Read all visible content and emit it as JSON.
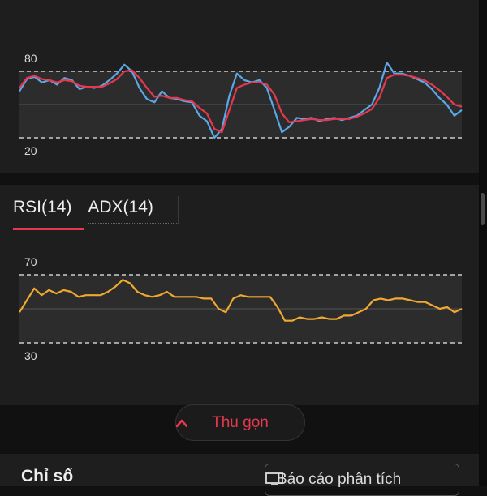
{
  "stochastic": {
    "upper_label": "80",
    "lower_label": "20",
    "k_color": "#5aa8e8",
    "d_color": "#e8384f",
    "k_values": [
      62,
      73,
      75,
      70,
      72,
      68,
      74,
      72,
      64,
      66,
      65,
      67,
      72,
      78,
      86,
      80,
      65,
      55,
      52,
      62,
      56,
      55,
      53,
      52,
      40,
      35,
      20,
      28,
      58,
      78,
      72,
      70,
      72,
      65,
      45,
      25,
      30,
      38,
      37,
      38,
      35,
      37,
      38,
      36,
      38,
      40,
      45,
      50,
      65,
      88,
      78,
      78,
      76,
      73,
      70,
      64,
      56,
      50,
      40,
      45
    ],
    "d_values": [
      65,
      74,
      76,
      73,
      72,
      70,
      72,
      71,
      67,
      66,
      66,
      66,
      69,
      73,
      80,
      81,
      74,
      65,
      57,
      58,
      56,
      56,
      54,
      53,
      47,
      42,
      28,
      25,
      45,
      65,
      68,
      70,
      70,
      68,
      59,
      42,
      34,
      35,
      36,
      37,
      36,
      36,
      37,
      37,
      37,
      39,
      42,
      46,
      56,
      74,
      77,
      77,
      76,
      74,
      72,
      68,
      63,
      57,
      50,
      48
    ]
  },
  "tabs": [
    {
      "label": "RSI(14)"
    },
    {
      "label": "ADX(14)"
    }
  ],
  "rsi": {
    "upper_label": "70",
    "lower_label": "30",
    "line_color": "#f0a830",
    "values": [
      48,
      55,
      62,
      58,
      61,
      59,
      61,
      60,
      57,
      58,
      58,
      58,
      60,
      63,
      67,
      65,
      60,
      58,
      57,
      58,
      60,
      57,
      57,
      57,
      57,
      56,
      56,
      50,
      48,
      56,
      58,
      57,
      57,
      57,
      57,
      51,
      43,
      43,
      45,
      44,
      44,
      45,
      44,
      44,
      46,
      46,
      48,
      50,
      55,
      56,
      55,
      56,
      56,
      55,
      54,
      54,
      52,
      50,
      51,
      48,
      50
    ]
  },
  "collapse_button": {
    "label": "Thu gọn"
  },
  "bottom": {
    "title": "Chỉ số",
    "report_button": "Báo cáo phân tích"
  }
}
